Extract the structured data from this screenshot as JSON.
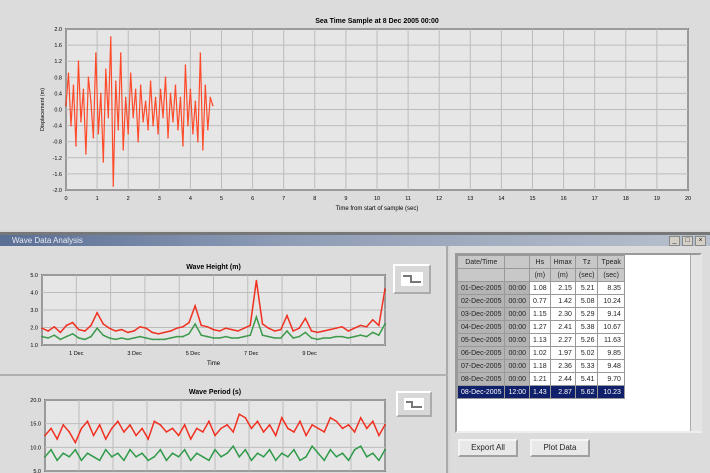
{
  "window_title": "Wave Data Analysis",
  "top_chart": {
    "type": "line",
    "title": "Sea Time Sample at 8 Dec 2005 00:00",
    "xlabel": "Time from start of sample (sec)",
    "ylabel": "Displacement (m)",
    "xlim": [
      0,
      20
    ],
    "ylim": [
      -2.0,
      2.0
    ],
    "x_ticks": [
      "0",
      "1",
      "2",
      "3",
      "4",
      "5",
      "6",
      "7",
      "8",
      "9",
      "10",
      "11",
      "12",
      "13",
      "14",
      "15",
      "16",
      "17",
      "18",
      "19",
      "20"
    ],
    "y_ticks": [
      "2.0",
      "1.6",
      "1.2",
      "0.8",
      "0.4",
      "0.0",
      "-0.4",
      "-0.8",
      "-1.2",
      "-1.6",
      "-2.0"
    ],
    "grid": true,
    "color": "#ff4a2a",
    "x_step": 0.08,
    "values": [
      0.1,
      0.9,
      -0.4,
      0.6,
      -0.9,
      1.2,
      -0.3,
      0.5,
      -1.1,
      0.8,
      0.2,
      -0.7,
      1.4,
      -0.6,
      0.4,
      -1.3,
      1.0,
      -0.2,
      1.8,
      -1.9,
      0.7,
      -0.5,
      1.4,
      -1.0,
      0.3,
      -0.6,
      0.9,
      -0.2,
      0.5,
      -0.8,
      0.6,
      -0.3,
      0.2,
      -0.5,
      0.7,
      -0.4,
      0.3,
      -0.6,
      0.5,
      -0.2,
      0.8,
      -0.7,
      0.4,
      -0.3,
      0.6,
      -0.5,
      0.3,
      -0.9,
      1.1,
      -0.4,
      0.5,
      -0.6,
      0.2,
      -0.8,
      1.4,
      -1.0,
      0.6,
      -0.5,
      0.3,
      0.1
    ]
  },
  "mid_chart": {
    "type": "line",
    "title": "Wave Height (m)",
    "xlabel": "Time",
    "ylim": [
      0,
      5
    ],
    "y_ticks": [
      "5.0",
      "4.0",
      "3.0",
      "2.0",
      "1.0"
    ],
    "x_ticks": [
      "1 Dec",
      "3 Dec",
      "5 Dec",
      "7 Dec",
      "9 Dec"
    ],
    "grid": true,
    "series": [
      {
        "color": "#f03020",
        "values": [
          1.2,
          1.0,
          1.3,
          0.9,
          1.4,
          1.6,
          1.1,
          1.0,
          1.4,
          2.3,
          1.5,
          1.2,
          1.0,
          1.1,
          0.9,
          1.0,
          1.3,
          1.2,
          0.9,
          0.8,
          0.9,
          1.0,
          1.2,
          1.3,
          1.6,
          2.8,
          1.4,
          1.3,
          1.1,
          1.0,
          1.2,
          1.1,
          1.0,
          1.2,
          1.4,
          4.6,
          1.5,
          1.2,
          1.0,
          1.1,
          2.1,
          1.0,
          1.2,
          1.9,
          1.0,
          0.9,
          1.0,
          1.1,
          1.2,
          1.3,
          1.0,
          1.2,
          1.4,
          1.3,
          1.8,
          1.4,
          4.0
        ]
      },
      {
        "color": "#3c9a4a",
        "values": [
          0.6,
          0.5,
          0.7,
          0.4,
          0.6,
          0.8,
          0.5,
          0.4,
          0.6,
          1.2,
          0.7,
          0.5,
          0.4,
          0.5,
          0.4,
          0.5,
          0.6,
          0.5,
          0.4,
          0.4,
          0.4,
          0.5,
          0.6,
          0.6,
          0.8,
          1.5,
          0.7,
          0.6,
          0.5,
          0.5,
          0.6,
          0.5,
          0.5,
          0.6,
          0.7,
          2.0,
          0.7,
          0.6,
          0.5,
          0.5,
          1.0,
          0.5,
          0.6,
          0.9,
          0.5,
          0.4,
          0.5,
          0.5,
          0.6,
          0.6,
          0.5,
          0.6,
          0.7,
          0.6,
          0.9,
          0.7,
          1.5
        ]
      }
    ]
  },
  "low_chart": {
    "type": "line",
    "title": "Wave Period (s)",
    "ylim": [
      0,
      20
    ],
    "y_ticks": [
      "20.0",
      "15.0",
      "10.0",
      "5.0"
    ],
    "grid": true,
    "series": [
      {
        "color": "#f03020",
        "values": [
          10,
          12,
          9,
          13,
          11,
          8,
          12,
          14,
          10,
          13,
          9,
          12,
          14,
          11,
          13,
          10,
          12,
          9,
          14,
          13,
          11,
          12,
          10,
          13,
          9,
          12,
          11,
          14,
          10,
          12,
          13,
          11,
          16,
          15,
          12,
          14,
          11,
          13,
          10,
          15,
          12,
          11,
          14,
          10,
          13,
          12,
          11,
          15,
          14,
          12,
          13,
          11,
          15,
          12,
          14,
          10,
          13
        ]
      },
      {
        "color": "#2f9a4a",
        "values": [
          4,
          6,
          3,
          5,
          4,
          6,
          3,
          5,
          4,
          3,
          6,
          4,
          5,
          3,
          6,
          4,
          5,
          3,
          4,
          6,
          3,
          5,
          4,
          6,
          3,
          5,
          4,
          3,
          6,
          4,
          5,
          7,
          4,
          6,
          3,
          5,
          4,
          6,
          3,
          5,
          4,
          6,
          3,
          4,
          7,
          5,
          3,
          6,
          4,
          5,
          3,
          6,
          7,
          4,
          5,
          3,
          6
        ]
      }
    ]
  },
  "buttons": {
    "export": "Export All",
    "ok": "Plot Data"
  },
  "table": {
    "headers": [
      [
        "Date/Time",
        "",
        "Hs",
        "Hmax",
        "Tz",
        "Tpeak"
      ],
      [
        "",
        "",
        "(m)",
        "(m)",
        "(sec)",
        "(sec)"
      ]
    ],
    "rows": [
      [
        "01-Dec-2005",
        "00:00",
        "1.08",
        "2.15",
        "5.21",
        "8.35"
      ],
      [
        "02-Dec-2005",
        "00:00",
        "0.77",
        "1.42",
        "5.08",
        "10.24"
      ],
      [
        "03-Dec-2005",
        "00:00",
        "1.15",
        "2.30",
        "5.29",
        "9.14"
      ],
      [
        "04-Dec-2005",
        "00:00",
        "1.27",
        "2.41",
        "5.38",
        "10.67"
      ],
      [
        "05-Dec-2005",
        "00:00",
        "1.13",
        "2.27",
        "5.26",
        "11.63"
      ],
      [
        "06-Dec-2005",
        "00:00",
        "1.02",
        "1.97",
        "5.02",
        "9.85"
      ],
      [
        "07-Dec-2005",
        "00:00",
        "1.18",
        "2.36",
        "5.33",
        "9.48"
      ],
      [
        "08-Dec-2005",
        "00:00",
        "1.21",
        "2.44",
        "5.41",
        "9.70"
      ],
      [
        "08-Dec-2005",
        "12:00",
        "1.43",
        "2.87",
        "5.62",
        "10.23"
      ]
    ],
    "selected_row": 8
  }
}
